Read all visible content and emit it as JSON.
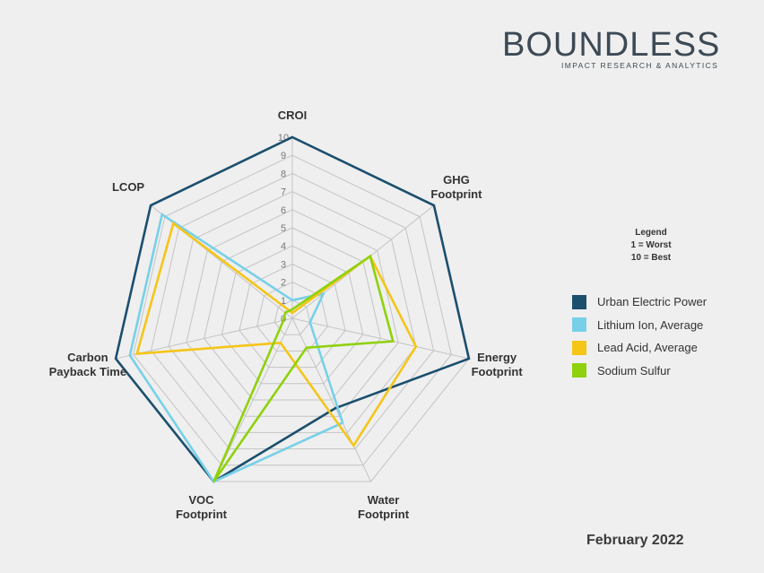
{
  "logo": {
    "name": "BOUNDLESS",
    "tagline": "IMPACT RESEARCH & ANALYTICS",
    "colors": {
      "text": "#3d4a55",
      "accent_dark": "#1f5f7a",
      "accent_light": "#4cc3d9",
      "accent_green": "#9bd12a"
    }
  },
  "legend_note": {
    "title": "Legend",
    "line1": "1 = Worst",
    "line2": "10  = Best"
  },
  "date": "February 2022",
  "chart_data": {
    "type": "radar",
    "axes": [
      [
        "CROI"
      ],
      [
        "GHG",
        "Footprint"
      ],
      [
        "Energy",
        "Footprint"
      ],
      [
        "Water",
        "Footprint"
      ],
      [
        "VOC",
        "Footprint"
      ],
      [
        "Carbon",
        "Payback Time"
      ],
      [
        "LCOP"
      ]
    ],
    "scale": {
      "min": 0,
      "max": 10,
      "ticks": [
        0,
        1,
        2,
        3,
        4,
        5,
        6,
        7,
        8,
        9,
        10
      ]
    },
    "grid": true,
    "legend_position": "right",
    "series": [
      {
        "name": "Urban Electric Power",
        "color": "#1b4f6e",
        "values": [
          10,
          10,
          10,
          5.5,
          10,
          10,
          10
        ]
      },
      {
        "name": "Lithium Ion, Average",
        "color": "#78d0e8",
        "values": [
          1,
          2.2,
          1,
          6.4,
          10,
          9.2,
          9.2
        ]
      },
      {
        "name": "Lead Acid, Average",
        "color": "#f5c518",
        "values": [
          0.3,
          5.5,
          7,
          7.8,
          1.5,
          8.8,
          8.4
        ]
      },
      {
        "name": "Sodium Sulfur",
        "color": "#8fd10c",
        "values": [
          0.5,
          5.5,
          5.7,
          1.8,
          10,
          0.5,
          0.5
        ]
      }
    ]
  }
}
